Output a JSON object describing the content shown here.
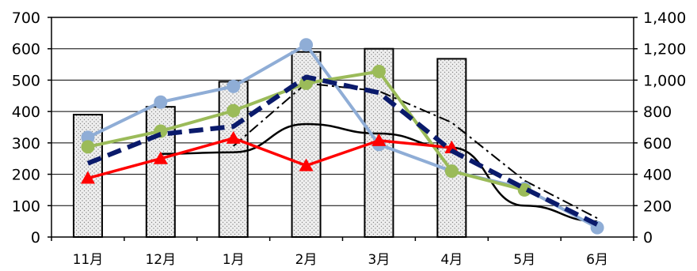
{
  "chart_data": {
    "type": "bar",
    "categories": [
      "11月",
      "12月",
      "1月",
      "2月",
      "3月",
      "4月",
      "5月",
      "6月"
    ],
    "left_axis": {
      "ylim": [
        0,
        700
      ],
      "ticks": [
        "0",
        "100",
        "200",
        "300",
        "400",
        "500",
        "600",
        "700"
      ]
    },
    "right_axis": {
      "ylim": [
        0,
        1400
      ],
      "ticks": [
        "0",
        "200",
        "400",
        "600",
        "800",
        "1,000",
        "1,200",
        "1,400"
      ]
    },
    "grid": true,
    "bars": {
      "axis": "left",
      "values": [
        390,
        415,
        495,
        590,
        600,
        568,
        null,
        null
      ],
      "fill": "#efefef",
      "stroke": "#000000"
    },
    "series": [
      {
        "axis": "right",
        "style": "solid-thin",
        "color": "#000000",
        "values": [
          null,
          530,
          540,
          720,
          660,
          570,
          200,
          100
        ]
      },
      {
        "axis": "right",
        "style": "dash-dot",
        "color": "#000000",
        "values": [
          null,
          null,
          580,
          980,
          930,
          730,
          360,
          120
        ]
      },
      {
        "axis": "right",
        "style": "line-circle",
        "color": "#8fadd6",
        "values": [
          635,
          860,
          960,
          1225,
          590,
          420,
          310,
          60
        ]
      },
      {
        "axis": "right",
        "style": "line-circle",
        "color": "#9bbb59",
        "values": [
          575,
          675,
          805,
          980,
          1055,
          420,
          300,
          null
        ]
      },
      {
        "axis": "right",
        "style": "line-triangle",
        "color": "#ff0000",
        "values": [
          375,
          500,
          630,
          455,
          615,
          570,
          null,
          null
        ]
      },
      {
        "axis": "right",
        "style": "dashed-thick",
        "color": "#0a1a6b",
        "values": [
          470,
          655,
          705,
          1020,
          920,
          550,
          310,
          80
        ]
      }
    ]
  }
}
